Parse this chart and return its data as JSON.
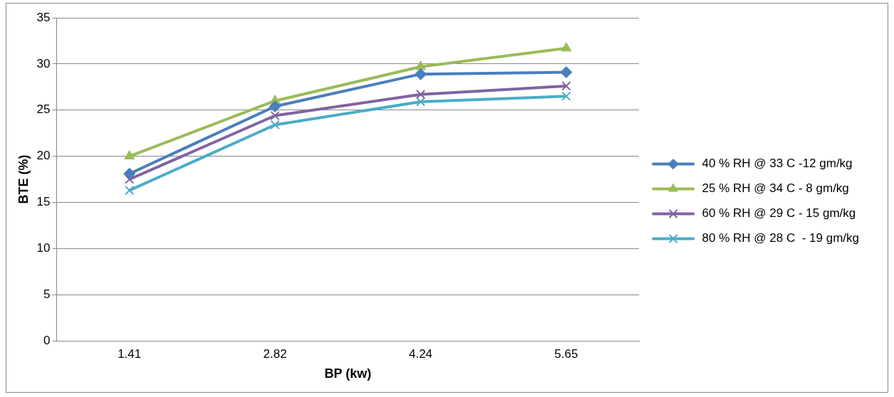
{
  "chart_data": {
    "type": "line",
    "xlabel": "BP (kw)",
    "ylabel": "BTE (%)",
    "categories": [
      "1.41",
      "2.82",
      "4.24",
      "5.65"
    ],
    "series": [
      {
        "name": "40 % RH @ 33 C -12 gm/kg",
        "color": "#4a7ebb",
        "marker": "diamond",
        "values": [
          18.1,
          25.4,
          28.9,
          29.1
        ]
      },
      {
        "name": "25 % RH @ 34 C - 8 gm/kg",
        "color": "#9bbb59",
        "marker": "triangle",
        "values": [
          20,
          26,
          29.7,
          31.7
        ]
      },
      {
        "name": "60 % RH @ 29 C - 15 gm/kg",
        "color": "#8064a2",
        "marker": "cross",
        "values": [
          17.5,
          24.4,
          26.7,
          27.6
        ]
      },
      {
        "name": "80 % RH @ 28 C  - 19 gm/kg",
        "color": "#4bacc6",
        "marker": "cross",
        "values": [
          16.3,
          23.4,
          25.9,
          26.5
        ]
      }
    ],
    "ylim": [
      0,
      35
    ],
    "yticks": [
      0,
      5,
      10,
      15,
      20,
      25,
      30,
      35
    ],
    "grid": "y",
    "legend": "right"
  }
}
